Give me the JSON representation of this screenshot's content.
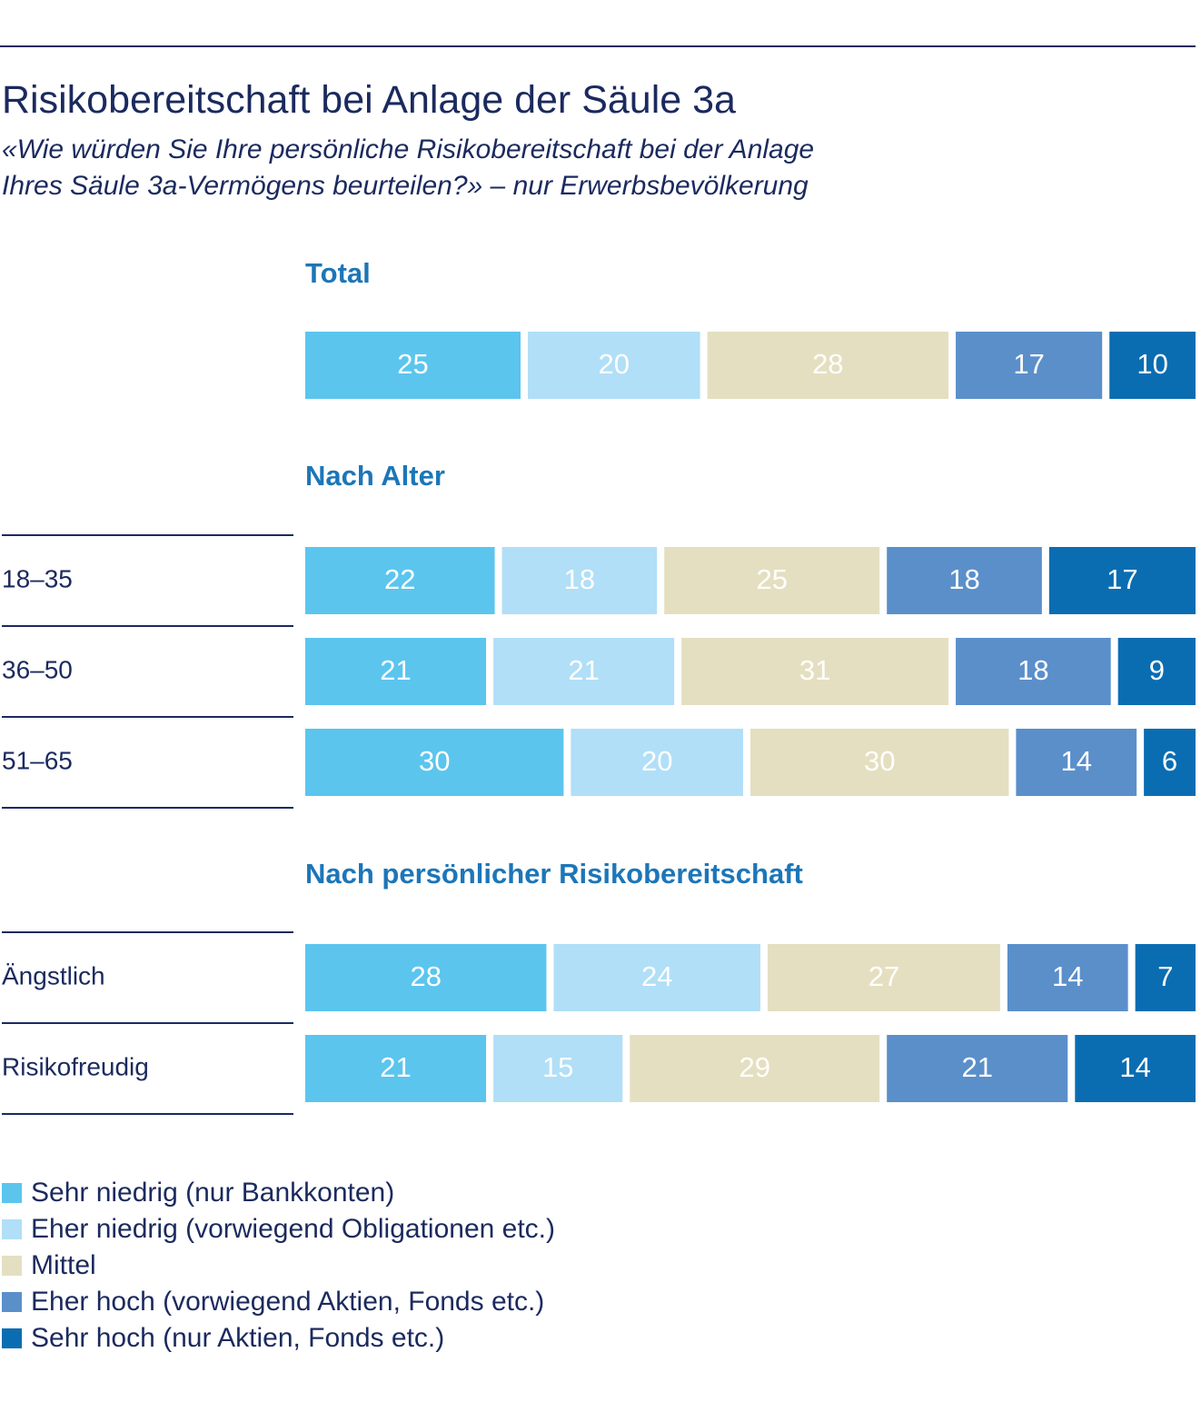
{
  "title": "Risikobereitschaft bei Anlage der Säule 3a",
  "subtitle_line1": "«Wie würden Sie Ihre persönliche Risikobereitschaft bei der Anlage",
  "subtitle_line2": "Ihres Säule 3a-Vermögens beurteilen?» – nur Erwerbsbevölkerung",
  "colors": {
    "text": "#1b2a5e",
    "section_heading": "#1c76b8",
    "rule": "#1b2a5e",
    "bar_label_light": "#ffffff"
  },
  "chart_data": {
    "type": "bar",
    "orientation": "horizontal",
    "stacked": true,
    "normalized": true,
    "value_unit": "percent",
    "legend_position": "bottom",
    "grid": false,
    "series": [
      {
        "name": "Sehr niedrig (nur Bankkonten)",
        "color": "#5bc5ee"
      },
      {
        "name": "Eher niedrig (vorwiegend Obligationen etc.)",
        "color": "#b1dff7"
      },
      {
        "name": "Mittel",
        "color": "#e4dfc0"
      },
      {
        "name": "Eher hoch (vorwiegend Aktien, Fonds etc.)",
        "color": "#5b8fca"
      },
      {
        "name": "Sehr hoch (nur Aktien, Fonds etc.)",
        "color": "#0a6db2"
      }
    ],
    "groups": [
      {
        "heading": "Total",
        "rows": [
          {
            "label": "",
            "values": [
              25,
              20,
              28,
              17,
              10
            ]
          }
        ]
      },
      {
        "heading": "Nach Alter",
        "rows": [
          {
            "label": "18–35",
            "values": [
              22,
              18,
              25,
              18,
              17
            ]
          },
          {
            "label": "36–50",
            "values": [
              21,
              21,
              31,
              18,
              9
            ]
          },
          {
            "label": "51–65",
            "values": [
              30,
              20,
              30,
              14,
              6
            ]
          }
        ]
      },
      {
        "heading": "Nach persönlicher Risikobereitschaft",
        "rows": [
          {
            "label": "Ängstlich",
            "values": [
              28,
              24,
              27,
              14,
              7
            ]
          },
          {
            "label": "Risikofreudig",
            "values": [
              21,
              15,
              29,
              21,
              14
            ]
          }
        ]
      }
    ]
  }
}
